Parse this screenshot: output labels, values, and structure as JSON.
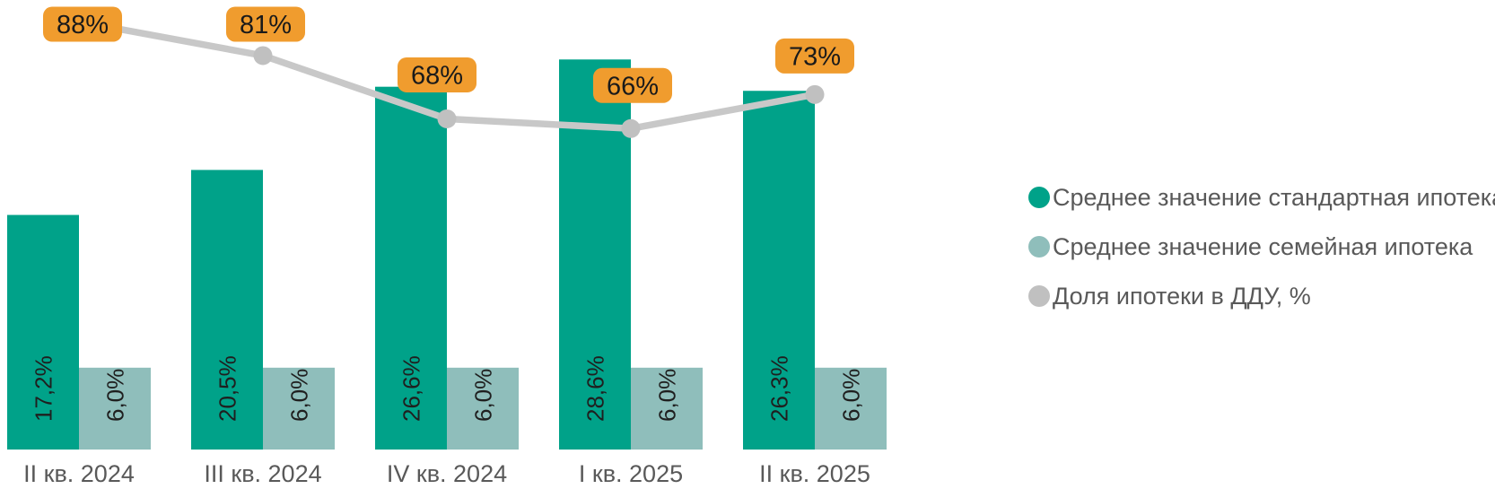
{
  "chart_data": {
    "type": "combo-bar-line",
    "title": "",
    "categories": [
      "II кв. 2024",
      "III кв. 2024",
      "IV кв. 2024",
      "I кв. 2025",
      "II кв. 2025"
    ],
    "series": [
      {
        "name": "Среднее значение стандартная ипотека",
        "chart_type": "bar",
        "color": "#00a289",
        "values": [
          17.2,
          20.5,
          26.6,
          28.6,
          26.3
        ],
        "labels": [
          "17,2%",
          "20,5%",
          "26,6%",
          "28,6%",
          "26,3%"
        ]
      },
      {
        "name": "Среднее значение семейная ипотека",
        "chart_type": "bar",
        "color": "#8fbebb",
        "values": [
          6.0,
          6.0,
          6.0,
          6.0,
          6.0
        ],
        "labels": [
          "6,0%",
          "6,0%",
          "6,0%",
          "6,0%",
          "6,0%"
        ]
      },
      {
        "name": "Доля ипотеки в ДДУ, %",
        "chart_type": "line",
        "color": "#c8c8c8",
        "marker_color": "#c0c0c0",
        "label_bg": "#f09c2e",
        "label_text_color": "#1a1a1a",
        "values": [
          88,
          81,
          68,
          66,
          73
        ],
        "labels": [
          "88%",
          "81%",
          "68%",
          "66%",
          "73%"
        ]
      }
    ],
    "axes": {
      "primary_y": {
        "min": 0,
        "unit": "%",
        "visible": false
      },
      "secondary_y": {
        "min": 0,
        "unit": "%",
        "visible": false
      }
    },
    "grid": false,
    "legend_position": "right",
    "text_colors": {
      "axis_labels": "#595959",
      "legend": "#595959",
      "bar_labels": "#1f1f1f"
    },
    "background": "#ffffff"
  }
}
